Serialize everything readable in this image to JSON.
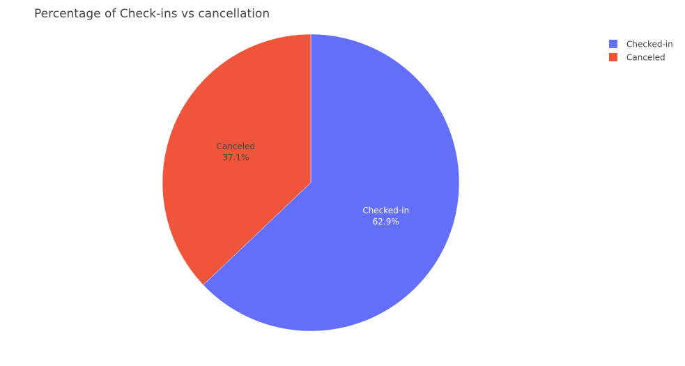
{
  "chart_data": {
    "type": "pie",
    "title": "Percentage of Check-ins vs cancellation",
    "slices": [
      {
        "label": "Checked-in",
        "value": 62.9,
        "percent_label": "62.9%",
        "color": "#636efa",
        "text_color": "#ffffff"
      },
      {
        "label": "Canceled",
        "value": 37.1,
        "percent_label": "37.1%",
        "color": "#ef553b",
        "text_color": "#444444"
      }
    ],
    "direction": "clockwise",
    "start": "top",
    "legend": {
      "position": "top-right",
      "entries": [
        "Checked-in",
        "Canceled"
      ]
    }
  }
}
